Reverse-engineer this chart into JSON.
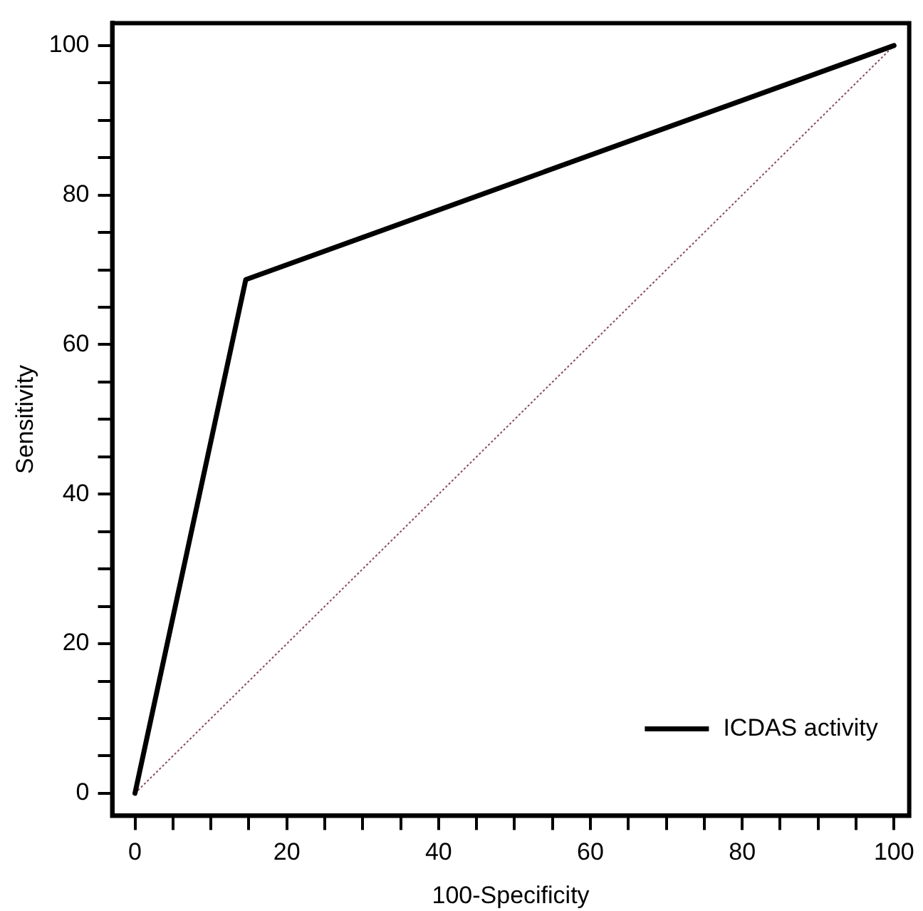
{
  "chart_data": {
    "type": "line",
    "xlabel": "100-Specificity",
    "ylabel": "Sensitivity",
    "series": [
      {
        "name": "ICDAS activity",
        "color": "#000000",
        "x": [
          0,
          14.6,
          100
        ],
        "values": [
          0,
          68.7,
          100
        ],
        "line_style": "solid"
      },
      {
        "color": "#8b4a5a",
        "x": [
          0,
          100
        ],
        "values": [
          0,
          100
        ],
        "line_style": "dotted"
      }
    ],
    "xlim": [
      -3,
      102
    ],
    "ylim": [
      -3,
      103
    ],
    "xticks": [
      0,
      {
        "value": 5,
        "label": null
      },
      {
        "value": 10,
        "label": null
      },
      {
        "value": 15,
        "label": null
      },
      20,
      {
        "value": 25,
        "label": null
      },
      {
        "value": 30,
        "label": null
      },
      {
        "value": 35,
        "label": null
      },
      40,
      {
        "value": 45,
        "label": null
      },
      {
        "value": 50,
        "label": null
      },
      {
        "value": 55,
        "label": null
      },
      60,
      {
        "value": 65,
        "label": null
      },
      {
        "value": 70,
        "label": null
      },
      {
        "value": 75,
        "label": null
      },
      80,
      {
        "value": 85,
        "label": null
      },
      {
        "value": 90,
        "label": null
      },
      {
        "value": 95,
        "label": null
      },
      100
    ],
    "yticks": [
      0,
      {
        "value": 5,
        "label": null
      },
      {
        "value": 10,
        "label": null
      },
      {
        "value": 15,
        "label": null
      },
      20,
      {
        "value": 25,
        "label": null
      },
      {
        "value": 30,
        "label": null
      },
      {
        "value": 35,
        "label": null
      },
      40,
      {
        "value": 45,
        "label": null
      },
      {
        "value": 50,
        "label": null
      },
      {
        "value": 55,
        "label": null
      },
      60,
      {
        "value": 65,
        "label": null
      },
      {
        "value": 70,
        "label": null
      },
      {
        "value": 75,
        "label": null
      },
      80,
      {
        "value": 85,
        "label": null
      },
      {
        "value": 90,
        "label": null
      },
      {
        "value": 95,
        "label": null
      },
      100
    ],
    "grid": false,
    "legend": "bottom right",
    "marker": "none"
  }
}
